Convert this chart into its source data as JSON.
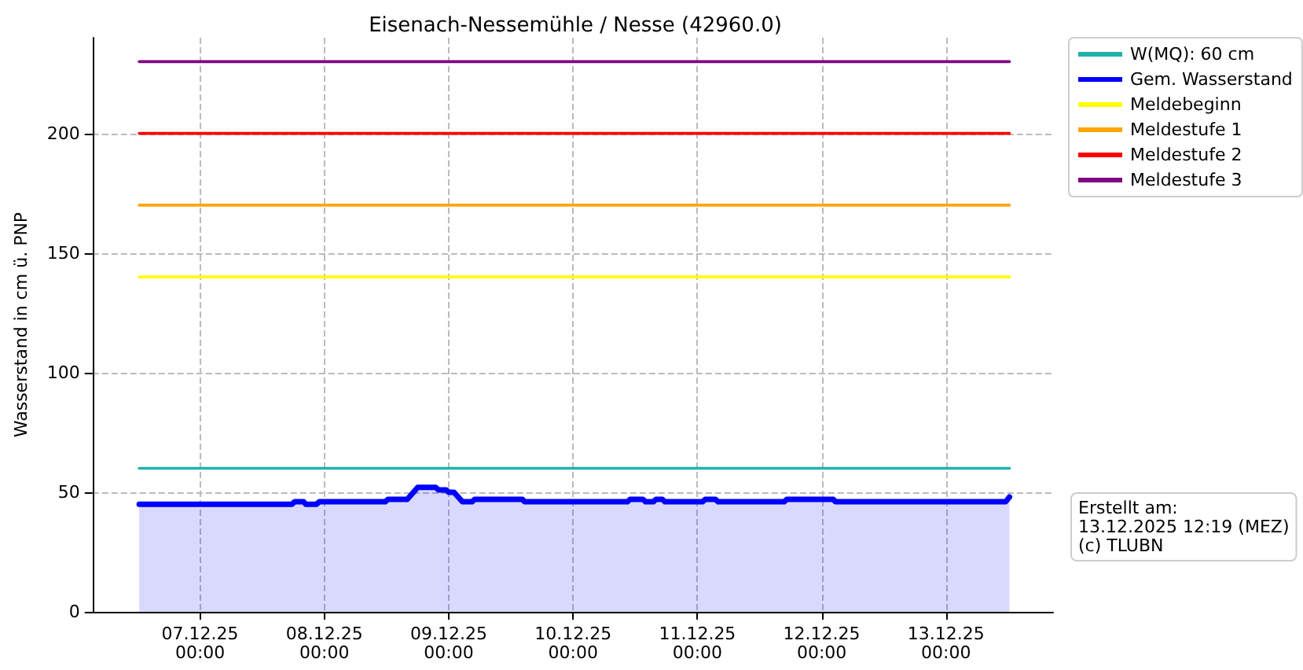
{
  "chart_data": {
    "type": "line",
    "title": "Eisenach-Nessemühle / Nesse (42960.0)",
    "ylabel": "Wasserstand in cm ü. PNP",
    "xlim": [
      "2025-12-06T03:15",
      "2025-12-13T20:40"
    ],
    "ylim": [
      0,
      240
    ],
    "yticks": [
      0,
      50,
      100,
      150,
      200
    ],
    "xticks": [
      {
        "value": "2025-12-07T00:00",
        "label": "07.12.25\n00:00"
      },
      {
        "value": "2025-12-08T00:00",
        "label": "08.12.25\n00:00"
      },
      {
        "value": "2025-12-09T00:00",
        "label": "09.12.25\n00:00"
      },
      {
        "value": "2025-12-10T00:00",
        "label": "10.12.25\n00:00"
      },
      {
        "value": "2025-12-11T00:00",
        "label": "11.12.25\n00:00"
      },
      {
        "value": "2025-12-12T00:00",
        "label": "12.12.25\n00:00"
      },
      {
        "value": "2025-12-13T00:00",
        "label": "13.12.25\n00:00"
      }
    ],
    "grid": true,
    "legend": "right",
    "line_style": "solid",
    "marker": "none",
    "series": [
      {
        "name": "W(MQ): 60 cm",
        "color": "#20b2aa",
        "x": [
          "2025-12-06T12:15",
          "2025-12-13T12:15"
        ],
        "values": [
          60,
          60
        ]
      },
      {
        "name": "Gem. Wasserstand",
        "type": "area",
        "color": "#0000ff",
        "x": [
          "2025-12-06T12:15",
          "2025-12-07T17:45",
          "2025-12-07T18:15",
          "2025-12-07T20:00",
          "2025-12-07T20:24",
          "2025-12-07T22:30",
          "2025-12-07T23:00",
          "2025-12-08T11:45",
          "2025-12-08T12:15",
          "2025-12-08T16:00",
          "2025-12-08T18:00",
          "2025-12-08T21:30",
          "2025-12-08T22:00",
          "2025-12-08T23:30",
          "2025-12-09T00:00",
          "2025-12-09T01:00",
          "2025-12-09T02:40",
          "2025-12-09T04:30",
          "2025-12-09T05:00",
          "2025-12-09T14:15",
          "2025-12-09T14:40",
          "2025-12-10T10:30",
          "2025-12-10T11:00",
          "2025-12-10T13:30",
          "2025-12-10T14:00",
          "2025-12-10T15:30",
          "2025-12-10T16:00",
          "2025-12-10T17:15",
          "2025-12-10T17:45",
          "2025-12-11T01:00",
          "2025-12-11T01:30",
          "2025-12-11T03:30",
          "2025-12-11T04:00",
          "2025-12-11T16:45",
          "2025-12-11T17:15",
          "2025-12-12T02:15",
          "2025-12-12T02:40",
          "2025-12-13T11:30",
          "2025-12-13T12:15"
        ],
        "values": [
          45,
          45,
          46,
          46,
          45,
          45,
          46,
          46,
          47,
          47,
          52,
          52,
          51,
          51,
          50,
          50,
          46,
          46,
          47,
          47,
          46,
          46,
          47,
          47,
          46,
          46,
          47,
          47,
          46,
          46,
          47,
          47,
          46,
          46,
          47,
          47,
          46,
          46,
          48
        ]
      },
      {
        "name": "Meldebeginn",
        "color": "#ffff00",
        "x": [
          "2025-12-06T12:15",
          "2025-12-13T12:15"
        ],
        "values": [
          140,
          140
        ]
      },
      {
        "name": "Meldestufe 1",
        "color": "#ffa500",
        "x": [
          "2025-12-06T12:15",
          "2025-12-13T12:15"
        ],
        "values": [
          170,
          170
        ]
      },
      {
        "name": "Meldestufe 2",
        "color": "#ff0000",
        "x": [
          "2025-12-06T12:15",
          "2025-12-13T12:15"
        ],
        "values": [
          200,
          200
        ]
      },
      {
        "name": "Meldestufe 3",
        "color": "#800080",
        "x": [
          "2025-12-06T12:15",
          "2025-12-13T12:15"
        ],
        "values": [
          230,
          230
        ]
      }
    ],
    "annotations": [
      "Erstellt am:\n13.12.2025 12:19 (MEZ)\n(c) TLUBN"
    ]
  }
}
